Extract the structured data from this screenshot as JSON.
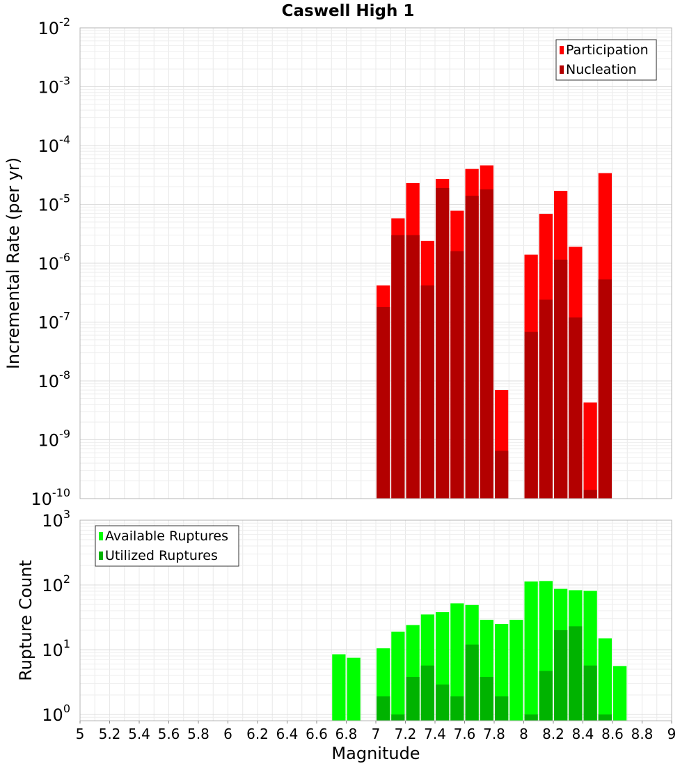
{
  "title": "Caswell High 1",
  "chart_data": [
    {
      "type": "bar",
      "ylabel": "Incremental Rate (per yr)",
      "yscale": "log",
      "ylim": [
        1e-10,
        0.01
      ],
      "xlim": [
        5,
        9
      ],
      "bar_width": 0.1,
      "grid": true,
      "legend_position": "top-right",
      "y_tick_exponents": [
        "-10",
        "-9",
        "-8",
        "-7",
        "-6",
        "-5",
        "-4",
        "-3",
        "-2"
      ],
      "series": [
        {
          "name": "Participation",
          "color": "#ff0000",
          "points": [
            {
              "x": 7.05,
              "y": 4.2e-07
            },
            {
              "x": 7.15,
              "y": 5.8e-06
            },
            {
              "x": 7.25,
              "y": 2.3e-05
            },
            {
              "x": 7.35,
              "y": 2.4e-06
            },
            {
              "x": 7.45,
              "y": 2.7e-05
            },
            {
              "x": 7.55,
              "y": 7.8e-06
            },
            {
              "x": 7.65,
              "y": 4e-05
            },
            {
              "x": 7.75,
              "y": 4.6e-05
            },
            {
              "x": 7.85,
              "y": 7e-09
            },
            {
              "x": 8.05,
              "y": 1.4e-06
            },
            {
              "x": 8.15,
              "y": 6.9e-06
            },
            {
              "x": 8.25,
              "y": 1.7e-05
            },
            {
              "x": 8.35,
              "y": 1.9e-06
            },
            {
              "x": 8.45,
              "y": 4.3e-09
            },
            {
              "x": 8.55,
              "y": 3.4e-05
            }
          ]
        },
        {
          "name": "Nucleation",
          "color": "#b30000",
          "points": [
            {
              "x": 7.05,
              "y": 1.8e-07
            },
            {
              "x": 7.15,
              "y": 3e-06
            },
            {
              "x": 7.25,
              "y": 3e-06
            },
            {
              "x": 7.35,
              "y": 4.2e-07
            },
            {
              "x": 7.45,
              "y": 1.9e-05
            },
            {
              "x": 7.55,
              "y": 1.6e-06
            },
            {
              "x": 7.65,
              "y": 1.4e-05
            },
            {
              "x": 7.75,
              "y": 1.8e-05
            },
            {
              "x": 7.85,
              "y": 6.5e-10
            },
            {
              "x": 8.05,
              "y": 6.8e-08
            },
            {
              "x": 8.15,
              "y": 2.4e-07
            },
            {
              "x": 8.25,
              "y": 1.15e-06
            },
            {
              "x": 8.35,
              "y": 1.2e-07
            },
            {
              "x": 8.45,
              "y": 1.4e-10
            },
            {
              "x": 8.55,
              "y": 5.3e-07
            }
          ]
        }
      ]
    },
    {
      "type": "bar",
      "ylabel": "Rupture Count",
      "xlabel": "Magnitude",
      "yscale": "log",
      "ylim": [
        0.8,
        1000
      ],
      "xlim": [
        5,
        9
      ],
      "bar_width": 0.1,
      "grid": true,
      "legend_position": "top-left",
      "x_ticks": [
        "5",
        "5.2",
        "5.4",
        "5.6",
        "5.8",
        "6",
        "6.2",
        "6.4",
        "6.6",
        "6.8",
        "7",
        "7.2",
        "7.4",
        "7.6",
        "7.8",
        "8",
        "8.2",
        "8.4",
        "8.6",
        "8.8",
        "9"
      ],
      "y_tick_exponents": [
        "0",
        "1",
        "2",
        "3"
      ],
      "series": [
        {
          "name": "Available Ruptures",
          "color": "#00ff00",
          "points": [
            {
              "x": 6.75,
              "y": 8.5
            },
            {
              "x": 6.85,
              "y": 7.5
            },
            {
              "x": 7.05,
              "y": 10.5
            },
            {
              "x": 7.15,
              "y": 19
            },
            {
              "x": 7.25,
              "y": 24
            },
            {
              "x": 7.35,
              "y": 35
            },
            {
              "x": 7.45,
              "y": 38
            },
            {
              "x": 7.55,
              "y": 52
            },
            {
              "x": 7.65,
              "y": 49
            },
            {
              "x": 7.75,
              "y": 29
            },
            {
              "x": 7.85,
              "y": 25
            },
            {
              "x": 7.95,
              "y": 29
            },
            {
              "x": 8.05,
              "y": 113
            },
            {
              "x": 8.15,
              "y": 115
            },
            {
              "x": 8.25,
              "y": 87
            },
            {
              "x": 8.35,
              "y": 83
            },
            {
              "x": 8.45,
              "y": 81
            },
            {
              "x": 8.55,
              "y": 15
            },
            {
              "x": 8.65,
              "y": 5.6
            }
          ]
        },
        {
          "name": "Utilized Ruptures",
          "color": "#00b300",
          "points": [
            {
              "x": 7.05,
              "y": 1.9
            },
            {
              "x": 7.15,
              "y": 1.0
            },
            {
              "x": 7.25,
              "y": 3.8
            },
            {
              "x": 7.35,
              "y": 5.7
            },
            {
              "x": 7.45,
              "y": 2.9
            },
            {
              "x": 7.55,
              "y": 1.9
            },
            {
              "x": 7.65,
              "y": 12
            },
            {
              "x": 7.75,
              "y": 3.8
            },
            {
              "x": 7.85,
              "y": 1.9
            },
            {
              "x": 8.05,
              "y": 1.0
            },
            {
              "x": 8.15,
              "y": 4.7
            },
            {
              "x": 8.25,
              "y": 20
            },
            {
              "x": 8.35,
              "y": 23
            },
            {
              "x": 8.45,
              "y": 5.7
            },
            {
              "x": 8.55,
              "y": 1.0
            }
          ]
        }
      ]
    }
  ]
}
